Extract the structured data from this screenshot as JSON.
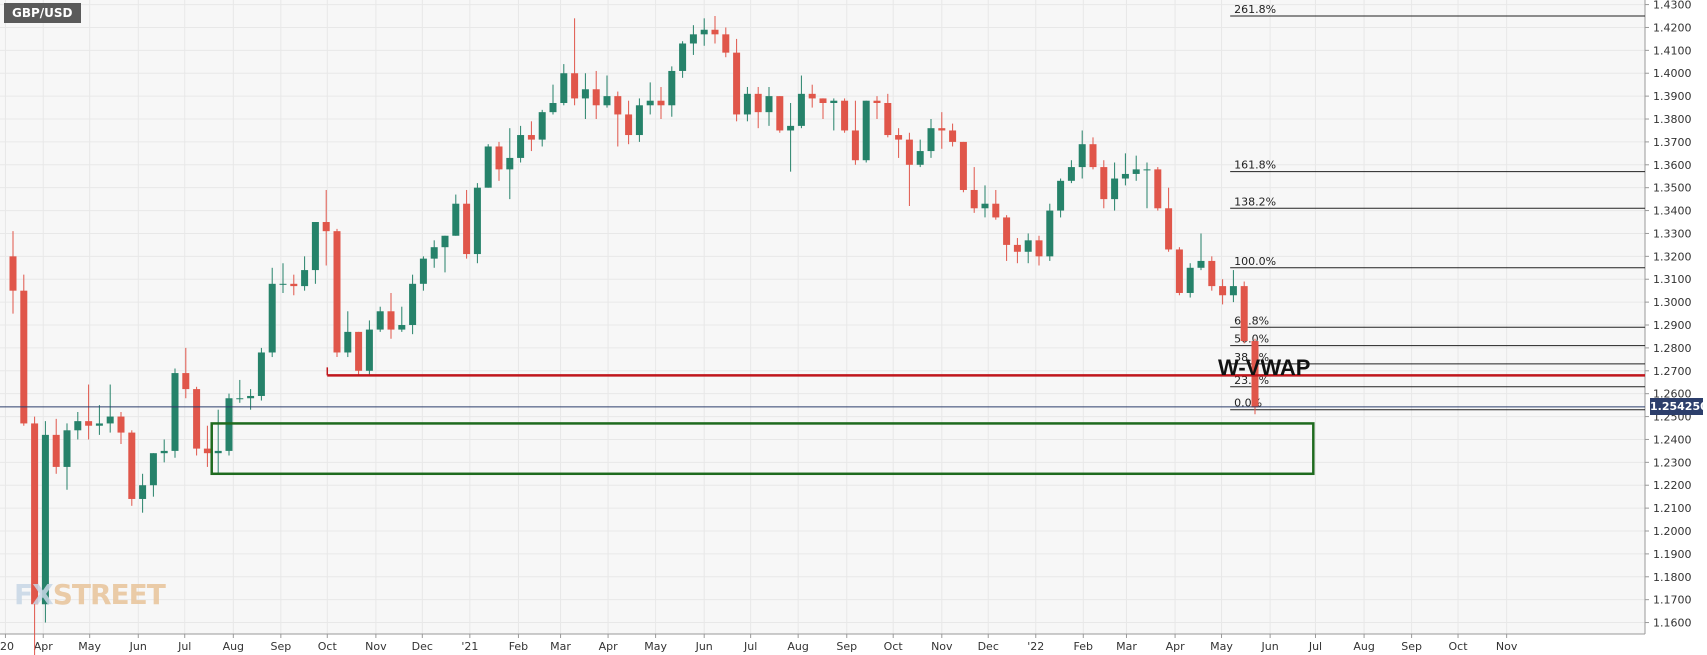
{
  "symbol": "GBP/USD",
  "watermark": {
    "prefix": "FX",
    "text": "STREET"
  },
  "last_price_label": "1.254250",
  "vwap_label": "W-VWAP",
  "colors": {
    "up": "#26826a",
    "down": "#e0564a",
    "vwap": "#c0161c",
    "support_box": "#1f6b1f",
    "price_line": "#2c3e6b",
    "grid": "#e8e8e8"
  },
  "chart_data": {
    "type": "candlestick",
    "title": "GBP/USD",
    "interval": "weekly",
    "ylim": [
      1.155,
      1.432
    ],
    "y_ticks": [
      "1.1600",
      "1.1700",
      "1.1800",
      "1.1900",
      "1.2000",
      "1.2100",
      "1.2200",
      "1.2300",
      "1.2400",
      "1.2500",
      "1.2600",
      "1.2700",
      "1.2800",
      "1.2900",
      "1.3000",
      "1.3100",
      "1.3200",
      "1.3300",
      "1.3400",
      "1.3500",
      "1.3600",
      "1.3700",
      "1.3800",
      "1.3900",
      "1.4000",
      "1.4100",
      "1.4200",
      "1.4300"
    ],
    "x_ticks": [
      {
        "label": "'20",
        "idx": -0.7
      },
      {
        "label": "Apr",
        "idx": 2.8
      },
      {
        "label": "May",
        "idx": 7.1
      },
      {
        "label": "Jun",
        "idx": 11.6
      },
      {
        "label": "Jul",
        "idx": 15.9
      },
      {
        "label": "Aug",
        "idx": 20.4
      },
      {
        "label": "Sep",
        "idx": 24.8
      },
      {
        "label": "Oct",
        "idx": 29.1
      },
      {
        "label": "Nov",
        "idx": 33.6
      },
      {
        "label": "Dec",
        "idx": 37.9
      },
      {
        "label": "'21",
        "idx": 42.3
      },
      {
        "label": "Feb",
        "idx": 46.8
      },
      {
        "label": "Mar",
        "idx": 50.7
      },
      {
        "label": "Apr",
        "idx": 55.1
      },
      {
        "label": "May",
        "idx": 59.5
      },
      {
        "label": "Jun",
        "idx": 64.0
      },
      {
        "label": "Jul",
        "idx": 68.3
      },
      {
        "label": "Aug",
        "idx": 72.7
      },
      {
        "label": "Sep",
        "idx": 77.2
      },
      {
        "label": "Oct",
        "idx": 81.5
      },
      {
        "label": "Nov",
        "idx": 86.0
      },
      {
        "label": "Dec",
        "idx": 90.3
      },
      {
        "label": "'22",
        "idx": 94.7
      },
      {
        "label": "Feb",
        "idx": 99.1
      },
      {
        "label": "Mar",
        "idx": 103.1
      },
      {
        "label": "Apr",
        "idx": 107.6
      },
      {
        "label": "May",
        "idx": 111.9
      },
      {
        "label": "Jun",
        "idx": 116.4
      },
      {
        "label": "Jul",
        "idx": 120.6
      },
      {
        "label": "Aug",
        "idx": 125.1
      },
      {
        "label": "Sep",
        "idx": 129.5
      },
      {
        "label": "Oct",
        "idx": 133.8
      },
      {
        "label": "Nov",
        "idx": 138.3
      }
    ],
    "candles": [
      [
        1.32,
        1.305,
        1.331,
        1.295
      ],
      [
        1.305,
        1.247,
        1.312,
        1.246
      ],
      [
        1.247,
        1.168,
        1.25,
        1.141
      ],
      [
        1.168,
        1.242,
        1.248,
        1.16
      ],
      [
        1.242,
        1.228,
        1.249,
        1.225
      ],
      [
        1.228,
        1.244,
        1.247,
        1.218
      ],
      [
        1.244,
        1.248,
        1.252,
        1.24
      ],
      [
        1.248,
        1.246,
        1.264,
        1.24
      ],
      [
        1.246,
        1.247,
        1.255,
        1.242
      ],
      [
        1.247,
        1.25,
        1.264,
        1.243
      ],
      [
        1.25,
        1.243,
        1.252,
        1.238
      ],
      [
        1.243,
        1.214,
        1.244,
        1.211
      ],
      [
        1.214,
        1.22,
        1.225,
        1.208
      ],
      [
        1.22,
        1.234,
        1.234,
        1.215
      ],
      [
        1.234,
        1.235,
        1.24,
        1.23
      ],
      [
        1.235,
        1.269,
        1.271,
        1.232
      ],
      [
        1.269,
        1.262,
        1.28,
        1.258
      ],
      [
        1.262,
        1.236,
        1.263,
        1.233
      ],
      [
        1.236,
        1.234,
        1.246,
        1.228
      ],
      [
        1.234,
        1.235,
        1.253,
        1.225
      ],
      [
        1.235,
        1.258,
        1.26,
        1.233
      ],
      [
        1.258,
        1.258,
        1.266,
        1.256
      ],
      [
        1.258,
        1.259,
        1.262,
        1.253
      ],
      [
        1.259,
        1.278,
        1.28,
        1.257
      ],
      [
        1.278,
        1.308,
        1.315,
        1.276
      ],
      [
        1.308,
        1.308,
        1.317,
        1.304
      ],
      [
        1.308,
        1.307,
        1.312,
        1.303
      ],
      [
        1.307,
        1.314,
        1.32,
        1.305
      ],
      [
        1.314,
        1.335,
        1.335,
        1.308
      ],
      [
        1.335,
        1.331,
        1.349,
        1.316
      ],
      [
        1.331,
        1.278,
        1.332,
        1.276
      ],
      [
        1.278,
        1.287,
        1.296,
        1.276
      ],
      [
        1.287,
        1.27,
        1.287,
        1.268
      ],
      [
        1.27,
        1.288,
        1.292,
        1.268
      ],
      [
        1.288,
        1.296,
        1.298,
        1.287
      ],
      [
        1.296,
        1.288,
        1.304,
        1.284
      ],
      [
        1.288,
        1.29,
        1.298,
        1.287
      ],
      [
        1.29,
        1.308,
        1.312,
        1.286
      ],
      [
        1.308,
        1.319,
        1.32,
        1.305
      ],
      [
        1.319,
        1.324,
        1.327,
        1.315
      ],
      [
        1.324,
        1.329,
        1.329,
        1.313
      ],
      [
        1.329,
        1.343,
        1.347,
        1.329
      ],
      [
        1.343,
        1.321,
        1.349,
        1.319
      ],
      [
        1.321,
        1.35,
        1.352,
        1.317
      ],
      [
        1.35,
        1.368,
        1.369,
        1.35
      ],
      [
        1.368,
        1.358,
        1.37,
        1.353
      ],
      [
        1.358,
        1.363,
        1.376,
        1.345
      ],
      [
        1.363,
        1.373,
        1.377,
        1.361
      ],
      [
        1.373,
        1.371,
        1.379,
        1.366
      ],
      [
        1.371,
        1.383,
        1.384,
        1.368
      ],
      [
        1.383,
        1.387,
        1.395,
        1.382
      ],
      [
        1.387,
        1.4,
        1.404,
        1.386
      ],
      [
        1.4,
        1.389,
        1.424,
        1.386
      ],
      [
        1.389,
        1.393,
        1.4,
        1.38
      ],
      [
        1.393,
        1.386,
        1.401,
        1.38
      ],
      [
        1.386,
        1.39,
        1.399,
        1.385
      ],
      [
        1.39,
        1.382,
        1.392,
        1.368
      ],
      [
        1.382,
        1.373,
        1.388,
        1.369
      ],
      [
        1.373,
        1.386,
        1.389,
        1.37
      ],
      [
        1.386,
        1.388,
        1.396,
        1.382
      ],
      [
        1.388,
        1.386,
        1.394,
        1.38
      ],
      [
        1.386,
        1.401,
        1.403,
        1.381
      ],
      [
        1.401,
        1.413,
        1.414,
        1.398
      ],
      [
        1.413,
        1.417,
        1.421,
        1.408
      ],
      [
        1.417,
        1.419,
        1.424,
        1.412
      ],
      [
        1.419,
        1.417,
        1.425,
        1.413
      ],
      [
        1.417,
        1.409,
        1.42,
        1.407
      ],
      [
        1.409,
        1.382,
        1.415,
        1.379
      ],
      [
        1.382,
        1.391,
        1.394,
        1.379
      ],
      [
        1.391,
        1.383,
        1.394,
        1.376
      ],
      [
        1.383,
        1.39,
        1.394,
        1.377
      ],
      [
        1.39,
        1.375,
        1.39,
        1.374
      ],
      [
        1.375,
        1.377,
        1.387,
        1.357
      ],
      [
        1.377,
        1.391,
        1.399,
        1.376
      ],
      [
        1.391,
        1.389,
        1.395,
        1.385
      ],
      [
        1.389,
        1.387,
        1.389,
        1.38
      ],
      [
        1.387,
        1.388,
        1.389,
        1.375
      ],
      [
        1.388,
        1.375,
        1.389,
        1.374
      ],
      [
        1.375,
        1.362,
        1.388,
        1.36
      ],
      [
        1.362,
        1.388,
        1.388,
        1.361
      ],
      [
        1.388,
        1.387,
        1.39,
        1.38
      ],
      [
        1.387,
        1.373,
        1.391,
        1.372
      ],
      [
        1.373,
        1.371,
        1.376,
        1.363
      ],
      [
        1.371,
        1.36,
        1.374,
        1.342
      ],
      [
        1.36,
        1.366,
        1.371,
        1.359
      ],
      [
        1.366,
        1.376,
        1.38,
        1.363
      ],
      [
        1.376,
        1.375,
        1.383,
        1.367
      ],
      [
        1.375,
        1.37,
        1.378,
        1.368
      ],
      [
        1.37,
        1.349,
        1.37,
        1.348
      ],
      [
        1.349,
        1.341,
        1.359,
        1.339
      ],
      [
        1.341,
        1.343,
        1.351,
        1.337
      ],
      [
        1.343,
        1.337,
        1.349,
        1.336
      ],
      [
        1.337,
        1.325,
        1.338,
        1.318
      ],
      [
        1.325,
        1.322,
        1.328,
        1.317
      ],
      [
        1.322,
        1.327,
        1.33,
        1.317
      ],
      [
        1.327,
        1.32,
        1.329,
        1.316
      ],
      [
        1.32,
        1.34,
        1.343,
        1.318
      ],
      [
        1.34,
        1.353,
        1.354,
        1.337
      ],
      [
        1.353,
        1.359,
        1.362,
        1.352
      ],
      [
        1.359,
        1.369,
        1.375,
        1.354
      ],
      [
        1.369,
        1.359,
        1.372,
        1.358
      ],
      [
        1.359,
        1.345,
        1.362,
        1.341
      ],
      [
        1.345,
        1.354,
        1.361,
        1.34
      ],
      [
        1.354,
        1.356,
        1.365,
        1.351
      ],
      [
        1.356,
        1.358,
        1.364,
        1.353
      ],
      [
        1.358,
        1.358,
        1.361,
        1.341
      ],
      [
        1.358,
        1.341,
        1.359,
        1.34
      ],
      [
        1.341,
        1.323,
        1.35,
        1.322
      ],
      [
        1.323,
        1.304,
        1.324,
        1.303
      ],
      [
        1.304,
        1.315,
        1.317,
        1.302
      ],
      [
        1.315,
        1.318,
        1.33,
        1.314
      ],
      [
        1.318,
        1.307,
        1.32,
        1.305
      ],
      [
        1.307,
        1.303,
        1.31,
        1.299
      ],
      [
        1.303,
        1.307,
        1.314,
        1.3
      ],
      [
        1.307,
        1.283,
        1.309,
        1.282
      ],
      [
        1.283,
        1.254,
        1.284,
        1.251
      ]
    ],
    "vwap": {
      "value": 1.268,
      "from_idx": 29.1
    },
    "current_price": 1.25425,
    "support_zone": {
      "y_top": 1.247,
      "y_bottom": 1.225,
      "from_idx": 18.4,
      "to_idx": 120.4
    },
    "fib_levels": [
      {
        "label": "261.8%",
        "value": 1.425
      },
      {
        "label": "161.8%",
        "value": 1.357
      },
      {
        "label": "138.2%",
        "value": 1.341
      },
      {
        "label": "100.0%",
        "value": 1.315
      },
      {
        "label": "61.8%",
        "value": 1.289
      },
      {
        "label": "50.0%",
        "value": 1.281
      },
      {
        "label": "38.2%",
        "value": 1.273
      },
      {
        "label": "23.6%",
        "value": 1.263
      },
      {
        "label": "0.0%",
        "value": 1.253
      }
    ],
    "fib_from_idx": 112.7
  }
}
